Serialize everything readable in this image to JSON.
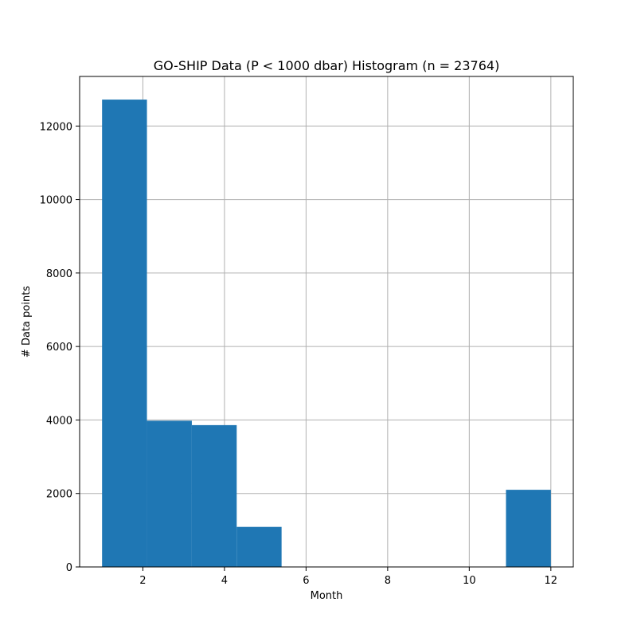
{
  "chart_data": {
    "type": "bar",
    "title": "GO-SHIP Data (P < 1000 dbar) Histogram (n = 23764)",
    "xlabel": "Month",
    "ylabel": "# Data points",
    "xlim": [
      0.45,
      12.55
    ],
    "ylim": [
      0,
      13350
    ],
    "xticks": [
      2,
      4,
      6,
      8,
      10,
      12
    ],
    "xtick_labels": [
      "2",
      "4",
      "6",
      "8",
      "10",
      "12"
    ],
    "yticks": [
      0,
      2000,
      4000,
      6000,
      8000,
      10000,
      12000
    ],
    "ytick_labels": [
      "0",
      "2000",
      "4000",
      "6000",
      "8000",
      "10000",
      "12000"
    ],
    "grid": true,
    "bar_color": "#1f77b4",
    "bins": [
      {
        "start": 1.0,
        "end": 2.1,
        "count": 12720
      },
      {
        "start": 2.1,
        "end": 3.2,
        "count": 3980
      },
      {
        "start": 3.2,
        "end": 4.3,
        "count": 3860
      },
      {
        "start": 4.3,
        "end": 5.4,
        "count": 1090
      },
      {
        "start": 5.4,
        "end": 6.5,
        "count": 0
      },
      {
        "start": 6.5,
        "end": 7.6,
        "count": 0
      },
      {
        "start": 7.6,
        "end": 8.7,
        "count": 0
      },
      {
        "start": 8.7,
        "end": 9.8,
        "count": 0
      },
      {
        "start": 9.8,
        "end": 10.9,
        "count": 0
      },
      {
        "start": 10.9,
        "end": 12.0,
        "count": 2100
      }
    ]
  }
}
